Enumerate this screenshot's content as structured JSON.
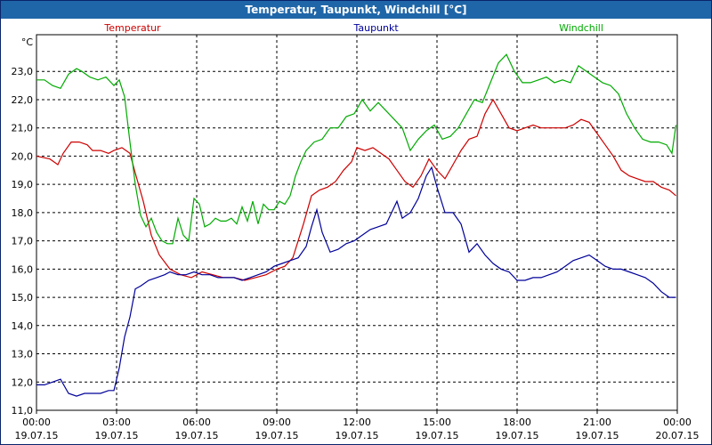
{
  "window": {
    "title": "Temperatur, Taupunkt, Windchill [°C]"
  },
  "colors": {
    "titlebar": "#1f66a8",
    "temperatur": "#cc0000",
    "taupunkt": "#000099",
    "windchill": "#00aa00",
    "grid": "#000000"
  },
  "chart_data": {
    "type": "line",
    "ylabel": "°C",
    "ylim": [
      11.0,
      24.3
    ],
    "xlim": [
      0,
      24
    ],
    "grid": true,
    "legend_placement": "top",
    "yticks": [
      "11,0",
      "12,0",
      "13,0",
      "14,0",
      "15,0",
      "16,0",
      "17,0",
      "18,0",
      "19,0",
      "20,0",
      "21,0",
      "22,0",
      "23,0"
    ],
    "xticks": [
      {
        "time": "00:00",
        "date": "19.07.15"
      },
      {
        "time": "03:00",
        "date": "19.07.15"
      },
      {
        "time": "06:00",
        "date": "19.07.15"
      },
      {
        "time": "09:00",
        "date": "19.07.15"
      },
      {
        "time": "12:00",
        "date": "19.07.15"
      },
      {
        "time": "15:00",
        "date": "19.07.15"
      },
      {
        "time": "18:00",
        "date": "19.07.15"
      },
      {
        "time": "21:00",
        "date": "19.07.15"
      },
      {
        "time": "00:00",
        "date": "20.07.15"
      }
    ],
    "x_unit": "hours since 19.07.15 00:00",
    "series": [
      {
        "name": "Temperatur",
        "color": "#cc0000",
        "x": [
          0,
          0.5,
          0.8,
          1.0,
          1.3,
          1.6,
          1.9,
          2.1,
          2.4,
          2.7,
          2.9,
          3.2,
          3.5,
          3.7,
          4.0,
          4.3,
          4.6,
          5.0,
          5.4,
          5.8,
          6.2,
          6.6,
          7.0,
          7.4,
          7.8,
          8.2,
          8.6,
          9.0,
          9.3,
          9.6,
          10.0,
          10.3,
          10.6,
          10.9,
          11.2,
          11.5,
          11.8,
          12.0,
          12.3,
          12.6,
          12.9,
          13.2,
          13.5,
          13.8,
          14.1,
          14.4,
          14.7,
          15.0,
          15.3,
          15.6,
          15.9,
          16.2,
          16.5,
          16.8,
          17.1,
          17.4,
          17.7,
          18.0,
          18.3,
          18.6,
          18.9,
          19.2,
          19.5,
          19.8,
          20.1,
          20.4,
          20.7,
          21.0,
          21.3,
          21.6,
          21.9,
          22.2,
          22.5,
          22.8,
          23.1,
          23.4,
          23.7,
          23.95
        ],
        "y": [
          20.0,
          19.9,
          19.7,
          20.1,
          20.5,
          20.5,
          20.4,
          20.2,
          20.2,
          20.1,
          20.2,
          20.3,
          20.1,
          19.4,
          18.4,
          17.2,
          16.5,
          16.0,
          15.8,
          15.7,
          15.9,
          15.8,
          15.7,
          15.7,
          15.6,
          15.7,
          15.8,
          16.0,
          16.1,
          16.4,
          17.6,
          18.6,
          18.8,
          18.9,
          19.1,
          19.5,
          19.8,
          20.3,
          20.2,
          20.3,
          20.1,
          19.9,
          19.5,
          19.1,
          18.9,
          19.3,
          19.9,
          19.5,
          19.2,
          19.7,
          20.2,
          20.6,
          20.7,
          21.5,
          22.0,
          21.5,
          21.0,
          20.9,
          21.0,
          21.1,
          21.0,
          21.0,
          21.0,
          21.0,
          21.1,
          21.3,
          21.2,
          20.8,
          20.4,
          20.0,
          19.5,
          19.3,
          19.2,
          19.1,
          19.1,
          18.9,
          18.8,
          18.6
        ]
      },
      {
        "name": "Taupunkt",
        "color": "#000099",
        "x": [
          0,
          0.3,
          0.6,
          0.9,
          1.2,
          1.5,
          1.8,
          2.1,
          2.4,
          2.7,
          2.9,
          3.1,
          3.3,
          3.5,
          3.7,
          3.9,
          4.2,
          4.5,
          4.8,
          5.0,
          5.3,
          5.6,
          5.9,
          6.2,
          6.5,
          6.8,
          7.1,
          7.4,
          7.7,
          8.0,
          8.3,
          8.6,
          8.9,
          9.2,
          9.5,
          9.8,
          10.1,
          10.3,
          10.5,
          10.7,
          11.0,
          11.3,
          11.6,
          11.9,
          12.2,
          12.5,
          12.8,
          13.1,
          13.3,
          13.5,
          13.7,
          14.0,
          14.3,
          14.6,
          14.8,
          15.0,
          15.3,
          15.6,
          15.9,
          16.2,
          16.5,
          16.8,
          17.1,
          17.4,
          17.7,
          18.0,
          18.3,
          18.6,
          18.9,
          19.2,
          19.5,
          19.8,
          20.1,
          20.4,
          20.7,
          21.0,
          21.3,
          21.6,
          21.9,
          22.2,
          22.5,
          22.8,
          23.1,
          23.4,
          23.7,
          23.95
        ],
        "y": [
          11.9,
          11.9,
          12.0,
          12.1,
          11.6,
          11.5,
          11.6,
          11.6,
          11.6,
          11.7,
          11.7,
          12.5,
          13.6,
          14.3,
          15.3,
          15.4,
          15.6,
          15.7,
          15.8,
          15.9,
          15.8,
          15.8,
          15.9,
          15.8,
          15.8,
          15.7,
          15.7,
          15.7,
          15.6,
          15.7,
          15.8,
          15.9,
          16.1,
          16.2,
          16.3,
          16.4,
          16.8,
          17.5,
          18.1,
          17.3,
          16.6,
          16.7,
          16.9,
          17.0,
          17.2,
          17.4,
          17.5,
          17.6,
          18.0,
          18.4,
          17.8,
          18.0,
          18.5,
          19.3,
          19.6,
          18.9,
          18.0,
          18.0,
          17.6,
          16.6,
          16.9,
          16.5,
          16.2,
          16.0,
          15.9,
          15.6,
          15.6,
          15.7,
          15.7,
          15.8,
          15.9,
          16.1,
          16.3,
          16.4,
          16.5,
          16.3,
          16.1,
          16.0,
          16.0,
          15.9,
          15.8,
          15.7,
          15.5,
          15.2,
          15.0,
          15.0
        ]
      },
      {
        "name": "Windchill",
        "color": "#00aa00",
        "x": [
          0,
          0.3,
          0.6,
          0.9,
          1.2,
          1.5,
          1.7,
          2.0,
          2.3,
          2.6,
          2.9,
          3.1,
          3.3,
          3.5,
          3.7,
          3.9,
          4.1,
          4.3,
          4.5,
          4.7,
          4.9,
          5.1,
          5.3,
          5.5,
          5.7,
          5.9,
          6.1,
          6.3,
          6.5,
          6.7,
          6.9,
          7.1,
          7.3,
          7.5,
          7.7,
          7.9,
          8.1,
          8.3,
          8.5,
          8.7,
          8.9,
          9.1,
          9.3,
          9.5,
          9.7,
          9.9,
          10.1,
          10.4,
          10.7,
          11.0,
          11.3,
          11.6,
          11.9,
          12.2,
          12.5,
          12.8,
          13.1,
          13.4,
          13.7,
          14.0,
          14.3,
          14.6,
          14.9,
          15.2,
          15.5,
          15.8,
          16.1,
          16.4,
          16.7,
          17.0,
          17.3,
          17.6,
          17.9,
          18.2,
          18.5,
          18.8,
          19.1,
          19.4,
          19.7,
          20.0,
          20.3,
          20.6,
          20.9,
          21.2,
          21.5,
          21.8,
          22.1,
          22.4,
          22.7,
          23.0,
          23.3,
          23.6,
          23.8,
          23.95
        ],
        "y": [
          22.7,
          22.7,
          22.5,
          22.4,
          22.9,
          23.1,
          23.0,
          22.8,
          22.7,
          22.8,
          22.5,
          22.7,
          22.1,
          20.5,
          19.0,
          17.9,
          17.5,
          17.8,
          17.3,
          17.0,
          16.9,
          16.9,
          17.8,
          17.2,
          17.0,
          18.5,
          18.3,
          17.5,
          17.6,
          17.8,
          17.7,
          17.7,
          17.8,
          17.6,
          18.2,
          17.7,
          18.4,
          17.6,
          18.3,
          18.1,
          18.1,
          18.4,
          18.3,
          18.6,
          19.3,
          19.8,
          20.2,
          20.5,
          20.6,
          21.0,
          21.0,
          21.4,
          21.5,
          22.0,
          21.6,
          21.9,
          21.6,
          21.3,
          21.0,
          20.2,
          20.6,
          20.9,
          21.1,
          20.6,
          20.7,
          21.0,
          21.5,
          22.0,
          21.9,
          22.6,
          23.3,
          23.6,
          23.0,
          22.6,
          22.6,
          22.7,
          22.8,
          22.6,
          22.7,
          22.6,
          23.2,
          23.0,
          22.8,
          22.6,
          22.5,
          22.2,
          21.5,
          21.0,
          20.6,
          20.5,
          20.5,
          20.4,
          20.1,
          21.1
        ]
      }
    ]
  }
}
